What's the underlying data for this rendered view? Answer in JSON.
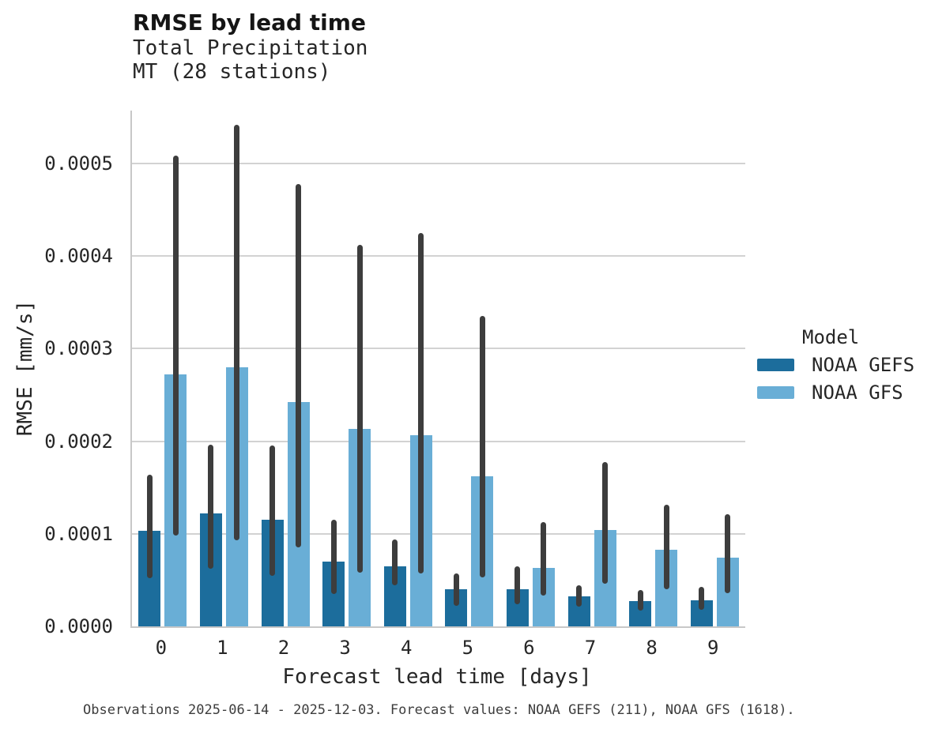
{
  "header": {
    "title": "RMSE by lead time",
    "subtitle_line1": "Total Precipitation",
    "subtitle_line2": "MT (28 stations)"
  },
  "caption": "Observations 2025-06-14 - 2025-12-03. Forecast values: NOAA GEFS (211), NOAA GFS (1618).",
  "legend": {
    "title": "Model",
    "entries": [
      {
        "label": "NOAA GEFS",
        "color": "#1c6d9c"
      },
      {
        "label": "NOAA GFS",
        "color": "#69aed6"
      }
    ]
  },
  "colors": {
    "gefs_bar": "#1c6d9c",
    "gfs_bar": "#69aed6",
    "error_bar": "#3d3d3d",
    "gridline": "#d2d2d2",
    "spine": "#c8c8c8"
  },
  "chart_data": {
    "type": "bar",
    "title": "RMSE by lead time",
    "subtitle": [
      "Total Precipitation",
      "MT (28 stations)"
    ],
    "xlabel": "Forecast lead time [days]",
    "ylabel": "RMSE [mm/s]",
    "categories": [
      "0",
      "1",
      "2",
      "3",
      "4",
      "5",
      "6",
      "7",
      "8",
      "9"
    ],
    "ylim": [
      0,
      0.000557
    ],
    "grid": "horizontal",
    "legend_position": "right",
    "yticks": [
      {
        "value": 0.0,
        "label": "0.0000"
      },
      {
        "value": 0.0001,
        "label": "0.0001"
      },
      {
        "value": 0.0002,
        "label": "0.0002"
      },
      {
        "value": 0.0003,
        "label": "0.0003"
      },
      {
        "value": 0.0004,
        "label": "0.0004"
      },
      {
        "value": 0.0005,
        "label": "0.0005"
      }
    ],
    "error_bar_color": "#3d3d3d",
    "series": [
      {
        "name": "NOAA GEFS",
        "color": "#1c6d9c",
        "values": [
          0.000103,
          0.000122,
          0.000115,
          7e-05,
          6.5e-05,
          4e-05,
          4e-05,
          3.2e-05,
          2.7e-05,
          2.8e-05
        ],
        "err_low": [
          5.2e-05,
          6.2e-05,
          5.5e-05,
          3.5e-05,
          4.4e-05,
          2.2e-05,
          2.4e-05,
          2.1e-05,
          1.7e-05,
          1.8e-05
        ],
        "err_high": [
          0.000164,
          0.000196,
          0.000195,
          0.000115,
          9.4e-05,
          5.7e-05,
          6.5e-05,
          4.4e-05,
          3.9e-05,
          4.3e-05
        ]
      },
      {
        "name": "NOAA GFS",
        "color": "#69aed6",
        "values": [
          0.000272,
          0.00028,
          0.000242,
          0.000213,
          0.000206,
          0.000162,
          6.3e-05,
          0.000104,
          8.3e-05,
          7.4e-05
        ],
        "err_low": [
          9.8e-05,
          9.3e-05,
          8.5e-05,
          5.8e-05,
          5.7e-05,
          5.3e-05,
          3.3e-05,
          4.6e-05,
          4e-05,
          3.6e-05
        ],
        "err_high": [
          0.000508,
          0.000542,
          0.000478,
          0.000412,
          0.000425,
          0.000335,
          0.000113,
          0.000177,
          0.000131,
          0.000121
        ]
      }
    ]
  }
}
